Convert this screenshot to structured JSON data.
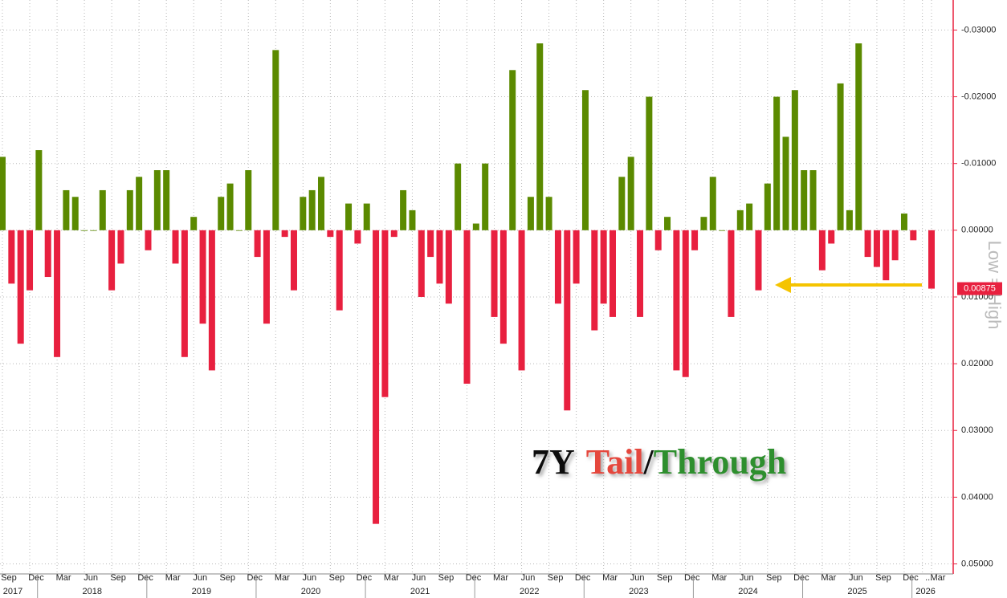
{
  "chart_data": {
    "type": "bar",
    "title_parts": [
      {
        "text": "7Y",
        "color": "#111111"
      },
      {
        "text": "Tail",
        "color": "#e5473c"
      },
      {
        "text": "/",
        "color": "#111111"
      },
      {
        "text": "Through",
        "color": "#2f8f2f"
      }
    ],
    "y_axis_label": "Low = High",
    "invert_y": true,
    "grid": true,
    "color_positive": "#e8203f",
    "color_negative": "#5b8a00",
    "categories": [
      "Sep",
      null,
      null,
      "Dec",
      null,
      null,
      "Mar",
      null,
      null,
      "Jun",
      null,
      null,
      "Sep",
      null,
      null,
      "Dec",
      null,
      null,
      "Mar",
      null,
      null,
      "Jun",
      null,
      null,
      "Sep",
      null,
      null,
      "Dec",
      null,
      null,
      "Mar",
      null,
      null,
      "Jun",
      null,
      null,
      "Sep",
      null,
      null,
      "Dec",
      null,
      null,
      "Mar",
      null,
      null,
      "Jun",
      null,
      null,
      "Sep",
      null,
      null,
      "Dec",
      null,
      null,
      "Mar",
      null,
      null,
      "Jun",
      null,
      null,
      "Sep",
      null,
      null,
      "Dec",
      null,
      null,
      "Mar",
      null,
      null,
      "Jun",
      null,
      null,
      "Sep",
      null,
      null,
      "Dec",
      null,
      null,
      "Mar",
      null,
      null,
      "Jun",
      null,
      null,
      "Sep",
      null,
      null,
      "Dec",
      null,
      null,
      "Mar",
      null,
      null,
      "Jun",
      null,
      null,
      "Sep",
      null,
      null,
      "Dec",
      null,
      "...",
      "Mar"
    ],
    "year_labels": [
      "2017",
      "2018",
      "2019",
      "2020",
      "2021",
      "2022",
      "2023",
      "2024",
      "2025",
      "2026"
    ],
    "values": [
      -0.011,
      0.008,
      0.017,
      0.009,
      -0.012,
      0.007,
      0.019,
      -0.006,
      -0.005,
      0,
      0,
      -0.006,
      0.009,
      0.005,
      -0.006,
      -0.008,
      0.003,
      -0.009,
      -0.009,
      0.005,
      0.019,
      -0.002,
      0.014,
      0.021,
      -0.005,
      -0.007,
      0,
      -0.009,
      0.004,
      0.014,
      -0.027,
      0.001,
      0.009,
      -0.005,
      -0.006,
      -0.008,
      0.001,
      0.012,
      -0.004,
      0.002,
      -0.004,
      0.044,
      0.025,
      0.001,
      -0.006,
      -0.003,
      0.01,
      0.004,
      0.008,
      0.011,
      -0.01,
      0.023,
      -0.001,
      -0.01,
      0.013,
      0.017,
      -0.024,
      0.021,
      -0.005,
      -0.028,
      -0.005,
      0.011,
      0.027,
      0.008,
      -0.021,
      0.015,
      0.011,
      0.013,
      -0.008,
      -0.011,
      0.013,
      -0.02,
      0.003,
      -0.002,
      0.021,
      0.022,
      0.003,
      -0.002,
      -0.008,
      0,
      0.013,
      -0.003,
      -0.004,
      0.009,
      -0.007,
      -0.02,
      -0.014,
      -0.021,
      -0.009,
      -0.009,
      0.006,
      0.002,
      -0.022,
      -0.003,
      -0.028,
      0.004,
      0.0055,
      0.0075,
      0.0045,
      -0.0025,
      0.0015,
      null,
      0.00875
    ],
    "ylim": [
      -0.0345,
      0.0515
    ],
    "yticks": [
      {
        "value": -0.03,
        "label": "-0.03000"
      },
      {
        "value": -0.02,
        "label": "-0.02000"
      },
      {
        "value": -0.01,
        "label": "-0.01000"
      },
      {
        "value": 0,
        "label": "0.00000"
      },
      {
        "value": 0.01,
        "label": "0.01000"
      },
      {
        "value": 0.02,
        "label": "0.02000"
      },
      {
        "value": 0.03,
        "label": "0.03000"
      },
      {
        "value": 0.04,
        "label": "0.04000"
      },
      {
        "value": 0.05,
        "label": "0.05000"
      }
    ]
  }
}
